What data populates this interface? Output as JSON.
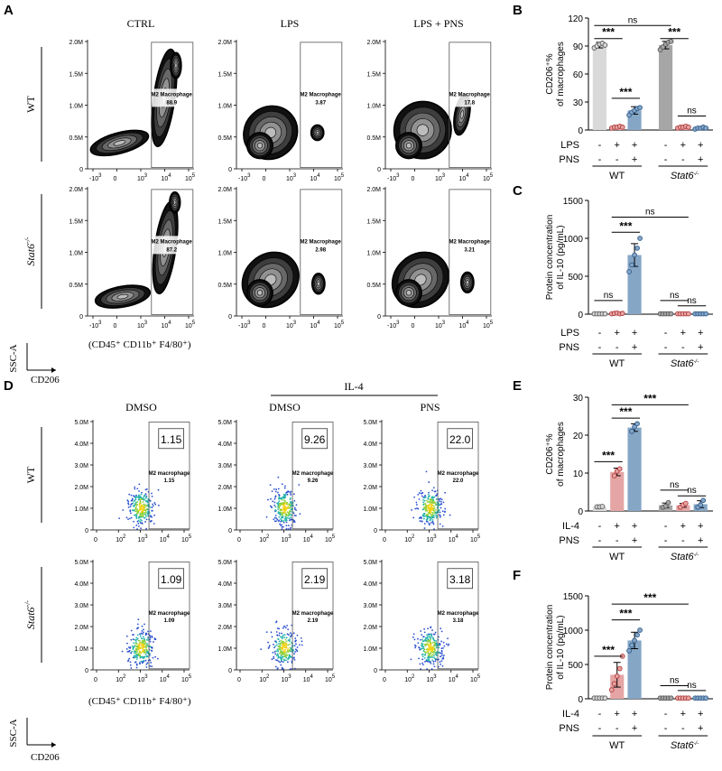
{
  "panel_letters": {
    "A": "A",
    "B": "B",
    "C": "C",
    "D": "D",
    "E": "E",
    "F": "F"
  },
  "flow_a": {
    "cols": [
      "CTRL",
      "LPS",
      "LPS + PNS"
    ],
    "rows": [
      "WT",
      "Stat6"
    ],
    "row_sup": "-/-",
    "y_ticks": [
      "2.0M",
      "1.5M",
      "1.0M",
      "0.5M",
      "0"
    ],
    "x_ticks": [
      "-10",
      "0",
      "10",
      "10",
      "10"
    ],
    "x_sups": [
      "3",
      "",
      "3",
      "4",
      "5"
    ],
    "gate_label": "M2 Macrophage",
    "values": [
      [
        "88.9",
        "3.87",
        "17.8"
      ],
      [
        "87.2",
        "2.98",
        "3.21"
      ]
    ],
    "ssc_label": "SSC-A",
    "cd206_label": "CD206",
    "gating_label": "(CD45⁺ CD11b⁺ F4/80⁺)"
  },
  "flow_d": {
    "top_label": "IL-4",
    "cols": [
      "DMSO",
      "DMSO",
      "PNS"
    ],
    "rows": [
      "WT",
      "Stat6"
    ],
    "row_sup": "-/-",
    "y_ticks": [
      "5.0M",
      "4.0M",
      "3.0M",
      "2.0M",
      "1.0M",
      "0"
    ],
    "x_ticks": [
      "0",
      "10",
      "10",
      "10",
      "10"
    ],
    "x_sups": [
      "",
      "2",
      "3",
      "4",
      "5"
    ],
    "gate_label": "M2 macrophage",
    "values": [
      [
        "1.15",
        "9.26",
        "22.0"
      ],
      [
        "1.09",
        "2.19",
        "3.18"
      ]
    ],
    "ssc_label": "SSC-A",
    "cd206_label": "CD206",
    "gating_label": "(CD45⁺ CD11b⁺ F4/80⁺)"
  },
  "chart_data": [
    {
      "panel": "B",
      "type": "bar",
      "ylabel": [
        "CD206⁺%",
        "of macrophages"
      ],
      "ylim": [
        0,
        120
      ],
      "yticks": [
        0,
        30,
        60,
        90,
        120
      ],
      "values": [
        91,
        3,
        21,
        91,
        3,
        2
      ],
      "errors": [
        3,
        1,
        4,
        4,
        1,
        1
      ],
      "colors": [
        "#d9d9d9",
        "#e6a5a5",
        "#86a6c6",
        "#a6a6a6",
        "#e6a5a5",
        "#86a6c6"
      ],
      "points": [
        [
          88,
          90,
          92,
          93,
          91
        ],
        [
          2,
          3,
          3,
          4,
          3
        ],
        [
          16,
          19,
          21,
          23,
          24
        ],
        [
          86,
          89,
          92,
          94,
          95
        ],
        [
          2,
          3,
          3,
          4,
          3
        ],
        [
          1,
          2,
          2,
          3,
          2
        ]
      ],
      "row1_label": "LPS",
      "row2_label": "PNS",
      "row1": [
        "-",
        "+",
        "+",
        "-",
        "+",
        "+"
      ],
      "row2": [
        "-",
        "-",
        "+",
        "-",
        "-",
        "+"
      ],
      "group1": "WT",
      "group2": "Stat6",
      "group2_sup": "-/-",
      "sig": [
        {
          "from": 0,
          "to": 1,
          "level": 98,
          "label": "***"
        },
        {
          "from": 1,
          "to": 2,
          "level": 34,
          "label": "***"
        },
        {
          "from": 0,
          "to": 3,
          "level": 112,
          "label": "ns"
        },
        {
          "from": 3,
          "to": 4,
          "level": 98,
          "label": "***"
        },
        {
          "from": 4,
          "to": 5,
          "level": 15,
          "label": "ns"
        }
      ]
    },
    {
      "panel": "C",
      "type": "bar",
      "ylabel": [
        "Protein concentration",
        "of IL-10 (pg/mL)"
      ],
      "ylim": [
        0,
        1500
      ],
      "yticks": [
        0,
        500,
        1000,
        1500
      ],
      "values": [
        5,
        10,
        780,
        5,
        5,
        5
      ],
      "errors": [
        3,
        10,
        150,
        3,
        3,
        3
      ],
      "colors": [
        "#d9d9d9",
        "#e6a5a5",
        "#86a6c6",
        "#a6a6a6",
        "#e6a5a5",
        "#86a6c6"
      ],
      "points": [
        [
          5,
          5,
          5,
          5,
          5
        ],
        [
          5,
          10,
          15,
          5,
          10
        ],
        [
          560,
          650,
          780,
          870,
          1000
        ],
        [
          5,
          5,
          5,
          5,
          5
        ],
        [
          5,
          5,
          5,
          5,
          5
        ],
        [
          5,
          5,
          5,
          5,
          5
        ]
      ],
      "row1_label": "LPS",
      "row2_label": "PNS",
      "row1": [
        "-",
        "+",
        "+",
        "-",
        "+",
        "+"
      ],
      "row2": [
        "-",
        "-",
        "+",
        "-",
        "-",
        "+"
      ],
      "group1": "WT",
      "group2": "Stat6",
      "group2_sup": "-/-",
      "sig": [
        {
          "from": 0,
          "to": 1,
          "level": 180,
          "label": "ns"
        },
        {
          "from": 1,
          "to": 2,
          "level": 1080,
          "label": "***"
        },
        {
          "from": 1,
          "to": 4,
          "level": 1280,
          "label": "ns"
        },
        {
          "from": 3,
          "to": 4,
          "level": 180,
          "label": "ns"
        },
        {
          "from": 4,
          "to": 5,
          "level": 110,
          "label": "ns"
        }
      ]
    },
    {
      "panel": "E",
      "type": "bar",
      "ylabel": [
        "CD206⁺%",
        "of macrophages"
      ],
      "ylim": [
        0,
        30
      ],
      "yticks": [
        0,
        10,
        20,
        30
      ],
      "values": [
        1.1,
        10.3,
        22.0,
        1.5,
        1.5,
        1.8
      ],
      "errors": [
        0.1,
        1.0,
        1.0,
        0.6,
        0.5,
        0.9
      ],
      "colors": [
        "#d9d9d9",
        "#e6a5a5",
        "#86a6c6",
        "#a6a6a6",
        "#e6a5a5",
        "#86a6c6"
      ],
      "points": [
        [
          1.1,
          1.1,
          1.2
        ],
        [
          9.3,
          10.5,
          11.1
        ],
        [
          21.0,
          22.2,
          23.0
        ],
        [
          1.0,
          1.3,
          2.2
        ],
        [
          1.0,
          1.6,
          2.0
        ],
        [
          1.0,
          1.6,
          2.8
        ]
      ],
      "row1_label": "IL-4",
      "row2_label": "PNS",
      "row1": [
        "-",
        "+",
        "+",
        "-",
        "+",
        "+"
      ],
      "row2": [
        "-",
        "-",
        "+",
        "-",
        "-",
        "+"
      ],
      "group1": "WT",
      "group2": "Stat6",
      "group2_sup": "-/-",
      "sig": [
        {
          "from": 0,
          "to": 1,
          "level": 13,
          "label": "***"
        },
        {
          "from": 1,
          "to": 2,
          "level": 24.5,
          "label": "***"
        },
        {
          "from": 1,
          "to": 4,
          "level": 28,
          "label": "***"
        },
        {
          "from": 3,
          "to": 4,
          "level": 5.5,
          "label": "ns"
        },
        {
          "from": 4,
          "to": 5,
          "level": 4,
          "label": "ns"
        }
      ]
    },
    {
      "panel": "F",
      "type": "bar",
      "ylabel": [
        "Protein concentration",
        "of IL-10 (pg/mL)"
      ],
      "ylim": [
        0,
        1500
      ],
      "yticks": [
        0,
        500,
        1000,
        1500
      ],
      "values": [
        10,
        350,
        850,
        10,
        10,
        10
      ],
      "errors": [
        5,
        180,
        120,
        5,
        5,
        5
      ],
      "colors": [
        "#d9d9d9",
        "#e6a5a5",
        "#86a6c6",
        "#a6a6a6",
        "#e6a5a5",
        "#86a6c6"
      ],
      "points": [
        [
          10,
          10,
          10,
          10,
          10
        ],
        [
          130,
          220,
          330,
          440,
          620
        ],
        [
          700,
          780,
          850,
          930,
          1000
        ],
        [
          10,
          10,
          10,
          10,
          10
        ],
        [
          10,
          10,
          10,
          10,
          10
        ],
        [
          10,
          10,
          10,
          10,
          10
        ]
      ],
      "row1_label": "IL-4",
      "row2_label": "PNS",
      "row1": [
        "-",
        "+",
        "+",
        "-",
        "+",
        "+"
      ],
      "row2": [
        "-",
        "-",
        "+",
        "-",
        "-",
        "+"
      ],
      "group1": "WT",
      "group2": "Stat6",
      "group2_sup": "-/-",
      "sig": [
        {
          "from": 0,
          "to": 1,
          "level": 620,
          "label": "***"
        },
        {
          "from": 1,
          "to": 2,
          "level": 1150,
          "label": "***"
        },
        {
          "from": 1,
          "to": 4,
          "level": 1380,
          "label": "***"
        },
        {
          "from": 3,
          "to": 4,
          "level": 190,
          "label": "ns"
        },
        {
          "from": 4,
          "to": 5,
          "level": 120,
          "label": "ns"
        }
      ]
    }
  ]
}
